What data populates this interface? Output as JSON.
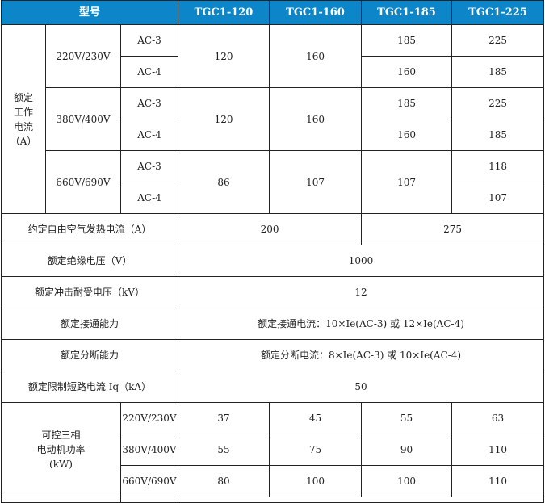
{
  "colors": {
    "header_bg": "#0c86c8",
    "header_text": "#ffffff"
  },
  "header": {
    "model_label": "型号",
    "models": [
      "TGC1-120",
      "TGC1-160",
      "TGC1-185",
      "TGC1-225"
    ]
  },
  "rated_current": {
    "label": [
      "额定",
      "工作",
      "电流",
      "（A）"
    ],
    "groups": [
      {
        "voltage": "220V/230V",
        "ac3": "AC-3",
        "ac4": "AC-4",
        "c120": "120",
        "c160": "160",
        "c185_ac3": "185",
        "c185_ac4": "160",
        "c225_ac3": "225",
        "c225_ac4": "185"
      },
      {
        "voltage": "380V/400V",
        "ac3": "AC-3",
        "ac4": "AC-4",
        "c120": "120",
        "c160": "160",
        "c185_ac3": "185",
        "c185_ac4": "160",
        "c225_ac3": "225",
        "c225_ac4": "185"
      },
      {
        "voltage": "660V/690V",
        "ac3": "AC-3",
        "ac4": "AC-4",
        "c120": "86",
        "c160": "107",
        "c185": "107",
        "c225_ac3": "118",
        "c225_ac4": "107"
      }
    ]
  },
  "thermal": {
    "label": "约定自由空气发热电流（A）",
    "v1": "200",
    "v2": "275"
  },
  "insulation": {
    "label": "额定绝缘电压（V）",
    "value": "1000"
  },
  "impulse": {
    "label": "额定冲击耐受电压（kV）",
    "value": "12"
  },
  "making": {
    "label": "额定接通能力",
    "value": "额定接通电流：10×Ie(AC-3) 或 12×Ie(AC-4)"
  },
  "breaking": {
    "label": "额定分断能力",
    "value": "额定分断电流：8×Ie(AC-3) 或 10×Ie(AC-4)"
  },
  "short_circuit": {
    "label": "额定限制短路电流 Iq（kA）",
    "value": "50"
  },
  "motor_power": {
    "label": [
      "可控三相",
      "电动机功率",
      "(kW)"
    ],
    "rows": [
      {
        "voltage": "220V/230V",
        "values": [
          "37",
          "45",
          "55",
          "63"
        ]
      },
      {
        "voltage": "380V/400V",
        "values": [
          "55",
          "75",
          "90",
          "110"
        ]
      },
      {
        "voltage": "660V/690V",
        "values": [
          "80",
          "100",
          "100",
          "110"
        ]
      }
    ]
  }
}
